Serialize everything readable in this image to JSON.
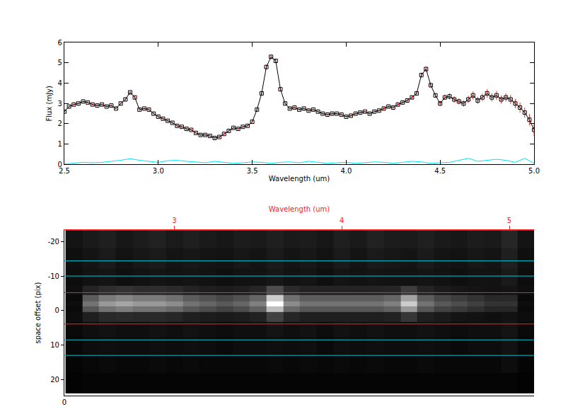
{
  "chart_data": [
    {
      "type": "line",
      "x_label": "Wavelength (um)",
      "y_label": "Flux (mJy)",
      "xlim": [
        2.5,
        5.0
      ],
      "xticks": [
        2.5,
        {
          "value": 3,
          "label": "3.0"
        },
        3.5,
        {
          "value": 4,
          "label": "4.0"
        },
        4.5,
        {
          "value": 5,
          "label": "5.0"
        }
      ],
      "ylim": [
        0,
        6
      ],
      "yticks": [
        0,
        1,
        2,
        3,
        4,
        5,
        6
      ],
      "grid": false,
      "series": [
        {
          "color": "#000000",
          "marker": "square",
          "line_style": "solid",
          "x": [
            2.5,
            2.525,
            2.55,
            2.575,
            2.6,
            2.625,
            2.65,
            2.675,
            2.7,
            2.725,
            2.75,
            2.775,
            2.8,
            2.825,
            2.85,
            2.875,
            2.9,
            2.925,
            2.95,
            2.975,
            3.0,
            3.025,
            3.05,
            3.075,
            3.1,
            3.125,
            3.15,
            3.175,
            3.2,
            3.225,
            3.25,
            3.275,
            3.3,
            3.325,
            3.35,
            3.375,
            3.4,
            3.425,
            3.45,
            3.475,
            3.5,
            3.525,
            3.55,
            3.575,
            3.6,
            3.625,
            3.65,
            3.675,
            3.7,
            3.725,
            3.75,
            3.775,
            3.8,
            3.825,
            3.85,
            3.875,
            3.9,
            3.925,
            3.95,
            3.975,
            4.0,
            4.025,
            4.05,
            4.075,
            4.1,
            4.125,
            4.15,
            4.175,
            4.2,
            4.225,
            4.25,
            4.275,
            4.3,
            4.325,
            4.35,
            4.375,
            4.4,
            4.425,
            4.45,
            4.475,
            4.5,
            4.525,
            4.55,
            4.575,
            4.6,
            4.625,
            4.65,
            4.675,
            4.7,
            4.725,
            4.75,
            4.775,
            4.8,
            4.825,
            4.85,
            4.875,
            4.9,
            4.925,
            4.95,
            4.975,
            5.0
          ],
          "values": [
            2.6,
            2.85,
            2.95,
            3.0,
            3.1,
            3.05,
            2.95,
            2.9,
            2.95,
            2.85,
            2.9,
            2.75,
            3.0,
            3.2,
            3.55,
            3.3,
            2.7,
            2.75,
            2.7,
            2.5,
            2.35,
            2.25,
            2.15,
            2.05,
            1.9,
            1.85,
            1.75,
            1.7,
            1.55,
            1.45,
            1.45,
            1.4,
            1.3,
            1.35,
            1.5,
            1.65,
            1.8,
            1.75,
            1.85,
            1.9,
            2.1,
            2.7,
            3.5,
            4.8,
            5.3,
            5.1,
            3.7,
            3.0,
            2.75,
            2.8,
            2.7,
            2.75,
            2.65,
            2.7,
            2.6,
            2.5,
            2.45,
            2.5,
            2.5,
            2.45,
            2.35,
            2.4,
            2.5,
            2.55,
            2.6,
            2.5,
            2.6,
            2.65,
            2.75,
            2.85,
            2.8,
            2.95,
            3.05,
            3.15,
            3.3,
            3.5,
            4.4,
            4.7,
            3.9,
            3.4,
            3.0,
            3.3,
            3.35,
            3.2,
            3.1,
            3.0,
            3.2,
            3.4,
            3.15,
            3.3,
            3.5,
            3.3,
            3.4,
            3.2,
            3.3,
            3.2,
            3.0,
            2.8,
            2.55,
            2.2,
            1.7
          ],
          "errors": [
            0.06,
            0.05,
            0.05,
            0.05,
            0.05,
            0.05,
            0.05,
            0.05,
            0.05,
            0.05,
            0.05,
            0.05,
            0.05,
            0.06,
            0.08,
            0.06,
            0.05,
            0.05,
            0.05,
            0.05,
            0.05,
            0.05,
            0.05,
            0.05,
            0.05,
            0.05,
            0.05,
            0.05,
            0.05,
            0.05,
            0.05,
            0.05,
            0.05,
            0.05,
            0.05,
            0.05,
            0.05,
            0.05,
            0.05,
            0.05,
            0.05,
            0.06,
            0.08,
            0.1,
            0.1,
            0.1,
            0.08,
            0.06,
            0.05,
            0.05,
            0.05,
            0.05,
            0.05,
            0.05,
            0.05,
            0.05,
            0.05,
            0.05,
            0.05,
            0.05,
            0.05,
            0.05,
            0.05,
            0.05,
            0.05,
            0.05,
            0.05,
            0.06,
            0.06,
            0.06,
            0.06,
            0.07,
            0.07,
            0.08,
            0.08,
            0.1,
            0.12,
            0.12,
            0.1,
            0.1,
            0.12,
            0.12,
            0.15,
            0.15,
            0.15,
            0.15,
            0.18,
            0.2,
            0.18,
            0.18,
            0.2,
            0.2,
            0.22,
            0.2,
            0.2,
            0.22,
            0.22,
            0.25,
            0.25,
            0.28,
            0.3
          ]
        },
        {
          "color": "#00e5ee",
          "marker": "none",
          "line_style": "solid",
          "x": [
            2.5,
            2.55,
            2.6,
            2.65,
            2.7,
            2.75,
            2.8,
            2.85,
            2.9,
            2.95,
            3.0,
            3.05,
            3.1,
            3.15,
            3.2,
            3.25,
            3.3,
            3.35,
            3.4,
            3.45,
            3.5,
            3.55,
            3.6,
            3.65,
            3.7,
            3.75,
            3.8,
            3.85,
            3.9,
            3.95,
            4.0,
            4.05,
            4.1,
            4.15,
            4.2,
            4.25,
            4.3,
            4.35,
            4.4,
            4.45,
            4.5,
            4.55,
            4.6,
            4.65,
            4.7,
            4.75,
            4.8,
            4.85,
            4.9,
            4.95,
            5.0
          ],
          "values": [
            0.02,
            0.05,
            0.1,
            0.08,
            0.1,
            0.15,
            0.2,
            0.28,
            0.2,
            0.15,
            0.1,
            0.18,
            0.2,
            0.15,
            0.12,
            0.08,
            0.15,
            0.1,
            0.05,
            0.08,
            0.12,
            0.1,
            0.05,
            0.1,
            0.12,
            0.08,
            0.15,
            0.1,
            0.05,
            0.08,
            0.1,
            0.05,
            0.08,
            0.12,
            0.1,
            0.05,
            0.1,
            0.15,
            0.12,
            0.05,
            0.08,
            0.1,
            0.2,
            0.3,
            0.15,
            0.2,
            0.25,
            0.2,
            0.1,
            0.3,
            0.05
          ]
        }
      ]
    },
    {
      "type": "heatmap",
      "x2_label": "Wavelength (um)",
      "y_label": "space offset (pix)",
      "xlim": [
        0,
        332
      ],
      "xticks": [
        0
      ],
      "x2lim": [
        2.343,
        5.148
      ],
      "x2ticks": [
        3,
        4,
        5
      ],
      "ylim": [
        24.6,
        -23.3
      ],
      "yticks": [
        -20,
        -10,
        0,
        10,
        20
      ],
      "zlim": [
        0,
        1
      ],
      "x": [
        2.4,
        2.5,
        2.6,
        2.7,
        2.8,
        2.9,
        3.0,
        3.1,
        3.2,
        3.3,
        3.4,
        3.5,
        3.6,
        3.7,
        3.8,
        3.9,
        4.0,
        4.1,
        4.2,
        4.3,
        4.4,
        4.5,
        4.6,
        4.7,
        4.8,
        4.9,
        5.0,
        5.1
      ],
      "y": [
        -21,
        -15,
        -9,
        -5.5,
        -3.5,
        -2,
        -0.5,
        1.5,
        5,
        10,
        15,
        21
      ],
      "z": [
        [
          0.08,
          0.1,
          0.12,
          0.09,
          0.11,
          0.13,
          0.1,
          0.12,
          0.1,
          0.09,
          0.11,
          0.1,
          0.12,
          0.1,
          0.11,
          0.09,
          0.12,
          0.1,
          0.13,
          0.11,
          0.1,
          0.12,
          0.1,
          0.09,
          0.11,
          0.1,
          0.15,
          0.08
        ],
        [
          0.06,
          0.08,
          0.1,
          0.07,
          0.09,
          0.1,
          0.08,
          0.09,
          0.08,
          0.07,
          0.09,
          0.08,
          0.1,
          0.08,
          0.09,
          0.07,
          0.1,
          0.08,
          0.1,
          0.09,
          0.08,
          0.1,
          0.08,
          0.07,
          0.09,
          0.08,
          0.12,
          0.06
        ],
        [
          0.05,
          0.07,
          0.08,
          0.06,
          0.07,
          0.08,
          0.07,
          0.08,
          0.07,
          0.06,
          0.07,
          0.07,
          0.09,
          0.07,
          0.08,
          0.06,
          0.08,
          0.07,
          0.08,
          0.07,
          0.07,
          0.08,
          0.07,
          0.06,
          0.07,
          0.07,
          0.1,
          0.05
        ],
        [
          0.06,
          0.14,
          0.18,
          0.2,
          0.18,
          0.18,
          0.17,
          0.14,
          0.12,
          0.11,
          0.12,
          0.15,
          0.3,
          0.17,
          0.14,
          0.14,
          0.14,
          0.14,
          0.14,
          0.15,
          0.24,
          0.14,
          0.11,
          0.09,
          0.08,
          0.07,
          0.08,
          0.06
        ],
        [
          0.04,
          0.36,
          0.48,
          0.52,
          0.48,
          0.48,
          0.44,
          0.36,
          0.32,
          0.28,
          0.32,
          0.4,
          0.8,
          0.44,
          0.36,
          0.36,
          0.36,
          0.36,
          0.36,
          0.4,
          0.64,
          0.36,
          0.28,
          0.24,
          0.2,
          0.16,
          0.16,
          0.04
        ],
        [
          0.05,
          0.45,
          0.6,
          0.65,
          0.6,
          0.6,
          0.55,
          0.45,
          0.4,
          0.35,
          0.4,
          0.5,
          1.0,
          0.55,
          0.45,
          0.45,
          0.45,
          0.45,
          0.45,
          0.5,
          0.8,
          0.45,
          0.35,
          0.3,
          0.25,
          0.2,
          0.2,
          0.05
        ],
        [
          0.04,
          0.34,
          0.45,
          0.49,
          0.45,
          0.45,
          0.41,
          0.34,
          0.3,
          0.26,
          0.3,
          0.38,
          0.75,
          0.41,
          0.34,
          0.34,
          0.34,
          0.34,
          0.34,
          0.38,
          0.6,
          0.34,
          0.26,
          0.23,
          0.19,
          0.15,
          0.15,
          0.04
        ],
        [
          0.05,
          0.12,
          0.16,
          0.17,
          0.16,
          0.16,
          0.15,
          0.12,
          0.11,
          0.1,
          0.11,
          0.13,
          0.26,
          0.15,
          0.12,
          0.12,
          0.12,
          0.12,
          0.12,
          0.13,
          0.21,
          0.12,
          0.1,
          0.08,
          0.07,
          0.06,
          0.07,
          0.05
        ],
        [
          0.04,
          0.06,
          0.07,
          0.06,
          0.06,
          0.07,
          0.06,
          0.07,
          0.06,
          0.05,
          0.06,
          0.06,
          0.08,
          0.06,
          0.07,
          0.05,
          0.07,
          0.06,
          0.07,
          0.06,
          0.06,
          0.07,
          0.06,
          0.05,
          0.06,
          0.06,
          0.08,
          0.04
        ],
        [
          0.03,
          0.05,
          0.06,
          0.05,
          0.05,
          0.06,
          0.05,
          0.06,
          0.05,
          0.04,
          0.05,
          0.05,
          0.06,
          0.05,
          0.06,
          0.04,
          0.06,
          0.05,
          0.06,
          0.05,
          0.05,
          0.06,
          0.05,
          0.04,
          0.05,
          0.05,
          0.07,
          0.03
        ],
        [
          0.02,
          0.03,
          0.04,
          0.03,
          0.03,
          0.04,
          0.03,
          0.04,
          0.03,
          0.03,
          0.03,
          0.03,
          0.04,
          0.03,
          0.04,
          0.03,
          0.04,
          0.03,
          0.04,
          0.03,
          0.03,
          0.04,
          0.03,
          0.03,
          0.03,
          0.03,
          0.05,
          0.02
        ],
        [
          0.01,
          0.02,
          0.02,
          0.02,
          0.02,
          0.02,
          0.02,
          0.02,
          0.02,
          0.02,
          0.02,
          0.02,
          0.02,
          0.02,
          0.02,
          0.02,
          0.02,
          0.02,
          0.02,
          0.02,
          0.02,
          0.02,
          0.02,
          0.02,
          0.02,
          0.02,
          0.02,
          0.01
        ]
      ],
      "hlines": [
        {
          "color": "#ff2020",
          "values": [
            -5.2,
            3.9
          ]
        },
        {
          "color": "#00c8d8",
          "values": [
            -14.4,
            -10,
            8.5,
            13
          ]
        }
      ]
    }
  ]
}
